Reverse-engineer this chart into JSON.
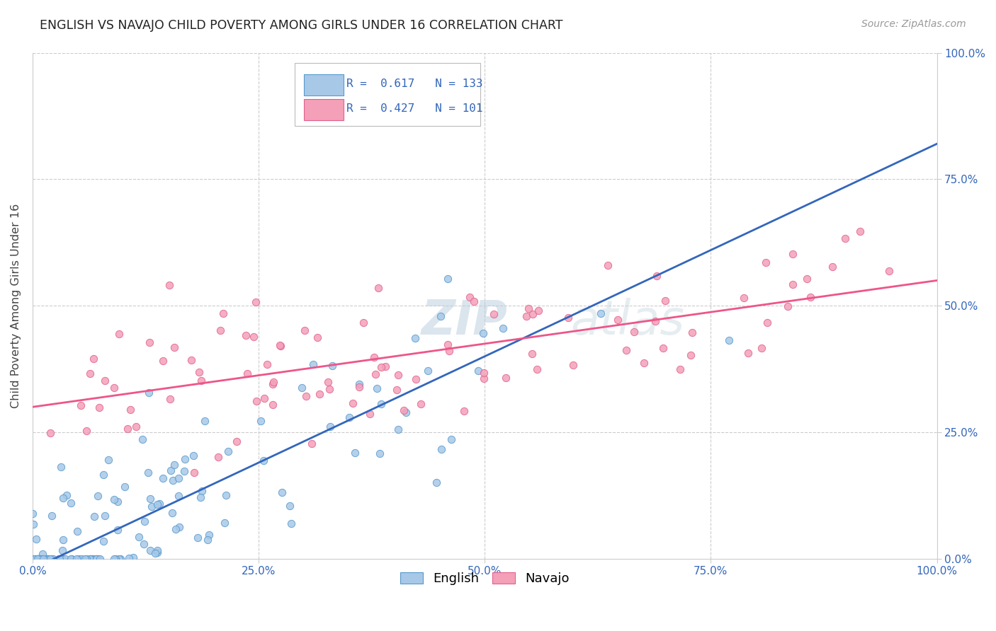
{
  "title": "ENGLISH VS NAVAJO CHILD POVERTY AMONG GIRLS UNDER 16 CORRELATION CHART",
  "source": "Source: ZipAtlas.com",
  "ylabel_text": "Child Poverty Among Girls Under 16",
  "english_R": 0.617,
  "english_N": 133,
  "navajo_R": 0.427,
  "navajo_N": 101,
  "english_color": "#a8c8e8",
  "navajo_color": "#f4a0b8",
  "english_edge_color": "#5599cc",
  "navajo_edge_color": "#e06090",
  "english_line_color": "#3366bb",
  "navajo_line_color": "#ee5588",
  "background_color": "#ffffff",
  "grid_color": "#cccccc",
  "axis_tick_color": "#3366bb",
  "title_color": "#222222",
  "source_color": "#999999",
  "watermark_color": "#d0dff0",
  "xlim": [
    0.0,
    1.0
  ],
  "ylim": [
    0.0,
    1.0
  ],
  "legend_english": "English",
  "legend_navajo": "Navajo",
  "figsize": [
    14.06,
    8.92
  ],
  "dpi": 100,
  "eng_line_x0": 0.0,
  "eng_line_y0": -0.02,
  "eng_line_x1": 1.0,
  "eng_line_y1": 0.82,
  "nav_line_x0": 0.0,
  "nav_line_y0": 0.3,
  "nav_line_x1": 1.0,
  "nav_line_y1": 0.55
}
